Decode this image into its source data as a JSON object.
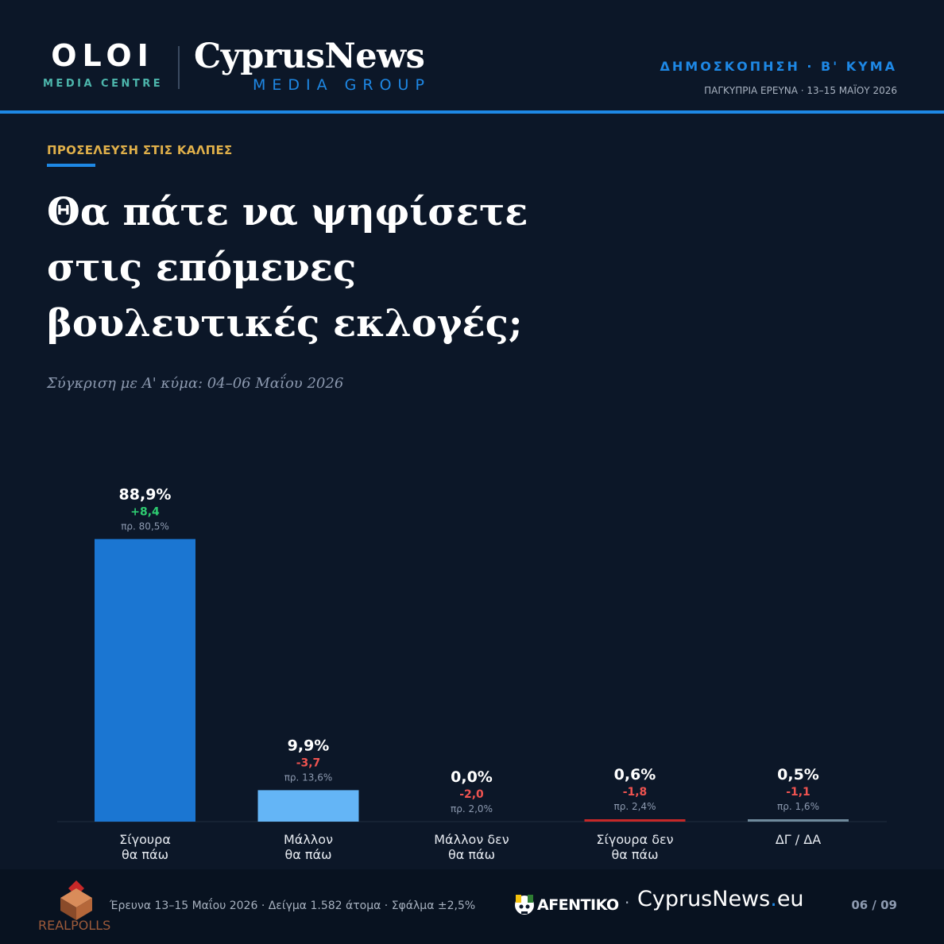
{
  "header": {
    "brand_left_big": "OLOI",
    "brand_left_small": "MEDIA CENTRE",
    "brand_right_big": "CyprusNews",
    "brand_right_small": "MEDIA GROUP",
    "kicker": "ΔΗΜΟΣΚΟΠΗΣΗ · Β' ΚΥΜΑ",
    "sub": "ΠΑΓΚΥΠΡΙΑ ΕΡΕΥΝΑ · 13–15 ΜΑΪΟΥ 2026"
  },
  "section_label": "ΠΡΟΣΕΛΕΥΣΗ ΣΤΙΣ ΚΑΛΠΕΣ",
  "title_lines": [
    "Θα πάτε να ψηφίσετε",
    "στις επόμενες",
    "βουλευτικές εκλογές;"
  ],
  "subtitle": "Σύγκριση με Α' κύμα: 04–06 Μαΐου 2026",
  "chart_data": {
    "type": "bar",
    "ylim": [
      0,
      100
    ],
    "grid": false,
    "categories": [
      [
        "Σίγουρα",
        "θα πάω"
      ],
      [
        "Μάλλον",
        "θα πάω"
      ],
      [
        "Μάλλον δεν",
        "θα πάω"
      ],
      [
        "Σίγουρα δεν",
        "θα πάω"
      ],
      [
        "ΔΓ / ΔΑ"
      ]
    ],
    "values": [
      88.9,
      9.9,
      0.0,
      0.6,
      0.5
    ],
    "value_labels": [
      "88,9%",
      "9,9%",
      "0,0%",
      "0,6%",
      "0,5%"
    ],
    "change_labels": [
      "+8,4",
      "-3,7",
      "-2,0",
      "-1,8",
      "-1,1"
    ],
    "previous_labels": [
      "πρ. 80,5%",
      "πρ. 13,6%",
      "πρ. 2,0%",
      "πρ. 2,4%",
      "πρ. 1,6%"
    ],
    "previous_values": [
      80.5,
      13.6,
      2.0,
      2.4,
      1.6
    ],
    "bar_colors": [
      "#1b76d2",
      "#64b5f6",
      "#1b76d2",
      "#c62828",
      "#6f8a9c"
    ],
    "positive_color": "#2ecc71",
    "negative_color": "#ef5350"
  },
  "footer": {
    "info": "Έρευνα 13–15 Μαΐου 2026  ·  Δείγμα 1.582 άτομα  ·  Σφάλμα ±2,5%",
    "realpolls": "REALPOLLS",
    "afentiko": "AFENTIKO",
    "site_name": "CyprusNews",
    "site_tld": "eu",
    "page": "06 / 09"
  }
}
